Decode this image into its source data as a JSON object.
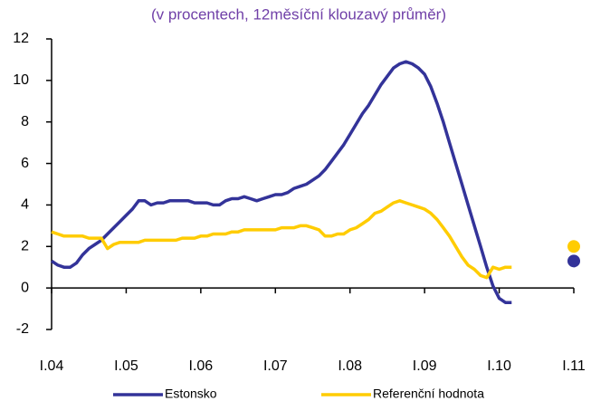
{
  "chart_data": {
    "type": "line",
    "title": "(v procentech, 12měsíční klouzavý průměr)",
    "categories": [
      "I.04",
      null,
      null,
      null,
      null,
      null,
      null,
      null,
      null,
      null,
      null,
      null,
      "I.05",
      null,
      null,
      null,
      null,
      null,
      null,
      null,
      null,
      null,
      null,
      null,
      "I.06",
      null,
      null,
      null,
      null,
      null,
      null,
      null,
      null,
      null,
      null,
      null,
      "I.07",
      null,
      null,
      null,
      null,
      null,
      null,
      null,
      null,
      null,
      null,
      null,
      "I.08",
      null,
      null,
      null,
      null,
      null,
      null,
      null,
      null,
      null,
      null,
      null,
      "I.09",
      null,
      null,
      null,
      null,
      null,
      null,
      null,
      null,
      null,
      null,
      null,
      "I.10",
      null,
      null,
      null,
      null,
      null,
      null,
      null,
      null,
      null,
      null,
      null,
      "I.11"
    ],
    "series": [
      {
        "name": "Estonsko",
        "color": "#333399",
        "values": [
          1.3,
          1.1,
          1.0,
          1.0,
          1.2,
          1.6,
          1.9,
          2.1,
          2.3,
          2.6,
          2.9,
          3.2,
          3.5,
          3.8,
          4.2,
          4.2,
          4.0,
          4.1,
          4.1,
          4.2,
          4.2,
          4.2,
          4.2,
          4.1,
          4.1,
          4.1,
          4.0,
          4.0,
          4.2,
          4.3,
          4.3,
          4.4,
          4.3,
          4.2,
          4.3,
          4.4,
          4.5,
          4.5,
          4.6,
          4.8,
          4.9,
          5.0,
          5.2,
          5.4,
          5.7,
          6.1,
          6.5,
          6.9,
          7.4,
          7.9,
          8.4,
          8.8,
          9.3,
          9.8,
          10.2,
          10.6,
          10.8,
          10.9,
          10.8,
          10.6,
          10.3,
          9.7,
          8.9,
          8.0,
          7.0,
          6.0,
          5.0,
          4.0,
          3.0,
          2.0,
          1.0,
          0.1,
          -0.5,
          -0.7,
          -0.7,
          null,
          null,
          null,
          null,
          null,
          null,
          null,
          null,
          null,
          1.3
        ]
      },
      {
        "name": "Referenční hodnota",
        "color": "#ffcc00",
        "values": [
          2.7,
          2.6,
          2.5,
          2.5,
          2.5,
          2.5,
          2.4,
          2.4,
          2.4,
          1.9,
          2.1,
          2.2,
          2.2,
          2.2,
          2.2,
          2.3,
          2.3,
          2.3,
          2.3,
          2.3,
          2.3,
          2.4,
          2.4,
          2.4,
          2.5,
          2.5,
          2.6,
          2.6,
          2.6,
          2.7,
          2.7,
          2.8,
          2.8,
          2.8,
          2.8,
          2.8,
          2.8,
          2.9,
          2.9,
          2.9,
          3.0,
          3.0,
          2.9,
          2.8,
          2.5,
          2.5,
          2.6,
          2.6,
          2.8,
          2.9,
          3.1,
          3.3,
          3.6,
          3.7,
          3.9,
          4.1,
          4.2,
          4.1,
          4.0,
          3.9,
          3.8,
          3.6,
          3.3,
          2.9,
          2.5,
          2.0,
          1.5,
          1.1,
          0.9,
          0.6,
          0.5,
          1.0,
          0.9,
          1.0,
          1.0,
          null,
          null,
          null,
          null,
          null,
          null,
          null,
          null,
          null,
          2.0
        ]
      }
    ],
    "ylim": [
      -2,
      12
    ],
    "yticks": [
      -2,
      0,
      2,
      4,
      6,
      8,
      10,
      12
    ],
    "grid": false
  }
}
